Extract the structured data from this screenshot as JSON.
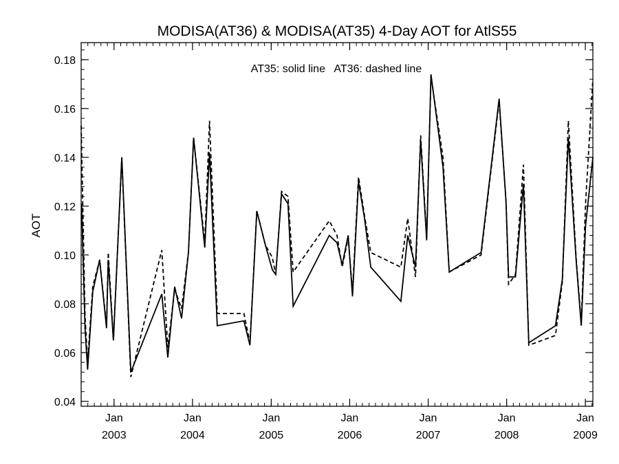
{
  "chart_data": {
    "type": "line",
    "title": "MODISA(AT36) & MODISA(AT35) 4-Day AOT for AtlS55",
    "ylabel": "AOT",
    "xlabel": "",
    "annotation": "AT35: solid line   AT36: dashed line",
    "xlim": [
      "2002-08-01",
      "2009-02-05"
    ],
    "ylim": [
      0.038,
      0.187
    ],
    "yticks": [
      0.04,
      0.06,
      0.08,
      0.1,
      0.12,
      0.14,
      0.16,
      0.18
    ],
    "ytick_labels": [
      "0.04",
      "0.06",
      "0.08",
      "0.10",
      "0.12",
      "0.14",
      "0.16",
      "0.18"
    ],
    "xticks": [
      {
        "date": "2003-01-01",
        "month": "Jan",
        "year": "2003"
      },
      {
        "date": "2004-01-01",
        "month": "Jan",
        "year": "2004"
      },
      {
        "date": "2005-01-01",
        "month": "Jan",
        "year": "2005"
      },
      {
        "date": "2006-01-01",
        "month": "Jan",
        "year": "2006"
      },
      {
        "date": "2007-01-01",
        "month": "Jan",
        "year": "2007"
      },
      {
        "date": "2008-01-01",
        "month": "Jan",
        "year": "2008"
      },
      {
        "date": "2009-01-01",
        "month": "Jan",
        "year": "2009"
      }
    ],
    "grid": false,
    "series": [
      {
        "name": "AT35",
        "style": "solid",
        "color": "#000000",
        "points": [
          [
            "2002-08-03",
            0.121
          ],
          [
            "2002-08-19",
            0.07
          ],
          [
            "2002-08-31",
            0.053
          ],
          [
            "2002-09-24",
            0.085
          ],
          [
            "2002-10-26",
            0.098
          ],
          [
            "2002-11-27",
            0.07
          ],
          [
            "2002-12-05",
            0.098
          ],
          [
            "2002-12-29",
            0.065
          ],
          [
            "2003-02-06",
            0.14
          ],
          [
            "2003-03-20",
            0.052
          ],
          [
            "2003-08-11",
            0.084
          ],
          [
            "2003-09-08",
            0.058
          ],
          [
            "2003-10-10",
            0.087
          ],
          [
            "2003-11-11",
            0.074
          ],
          [
            "2003-12-13",
            0.101
          ],
          [
            "2004-01-06",
            0.148
          ],
          [
            "2004-02-27",
            0.103
          ],
          [
            "2004-03-20",
            0.142
          ],
          [
            "2004-04-25",
            0.071
          ],
          [
            "2004-08-27",
            0.073
          ],
          [
            "2004-09-24",
            0.063
          ],
          [
            "2004-10-26",
            0.118
          ],
          [
            "2004-12-05",
            0.104
          ],
          [
            "2005-01-06",
            0.094
          ],
          [
            "2005-01-22",
            0.092
          ],
          [
            "2005-02-18",
            0.125
          ],
          [
            "2005-03-20",
            0.121
          ],
          [
            "2005-04-13",
            0.079
          ],
          [
            "2005-09-28",
            0.108
          ],
          [
            "2005-11-03",
            0.105
          ],
          [
            "2005-11-27",
            0.096
          ],
          [
            "2005-12-25",
            0.108
          ],
          [
            "2006-01-14",
            0.083
          ],
          [
            "2006-02-11",
            0.13
          ],
          [
            "2006-03-11",
            0.115
          ],
          [
            "2006-04-09",
            0.095
          ],
          [
            "2006-08-27",
            0.081
          ],
          [
            "2006-09-28",
            0.108
          ],
          [
            "2006-11-03",
            0.095
          ],
          [
            "2006-11-27",
            0.147
          ],
          [
            "2006-12-25",
            0.106
          ],
          [
            "2007-01-14",
            0.174
          ],
          [
            "2007-03-11",
            0.136
          ],
          [
            "2007-04-09",
            0.093
          ],
          [
            "2007-09-04",
            0.101
          ],
          [
            "2007-11-27",
            0.164
          ],
          [
            "2007-12-29",
            0.122
          ],
          [
            "2008-01-10",
            0.091
          ],
          [
            "2008-02-11",
            0.091
          ],
          [
            "2008-03-19",
            0.129
          ],
          [
            "2008-04-13",
            0.064
          ],
          [
            "2008-08-15",
            0.071
          ],
          [
            "2008-09-16",
            0.09
          ],
          [
            "2008-10-14",
            0.148
          ],
          [
            "2008-11-19",
            0.098
          ],
          [
            "2008-12-13",
            0.071
          ],
          [
            "2009-01-02",
            0.112
          ],
          [
            "2009-02-05",
            0.14
          ]
        ]
      },
      {
        "name": "AT36",
        "style": "dashed",
        "color": "#000000",
        "points": [
          [
            "2002-08-01",
            0.153
          ],
          [
            "2002-08-19",
            0.075
          ],
          [
            "2002-08-31",
            0.056
          ],
          [
            "2002-09-24",
            0.087
          ],
          [
            "2002-10-26",
            0.098
          ],
          [
            "2002-11-27",
            0.071
          ],
          [
            "2002-12-05",
            0.101
          ],
          [
            "2002-12-29",
            0.065
          ],
          [
            "2003-02-06",
            0.14
          ],
          [
            "2003-03-20",
            0.05
          ],
          [
            "2003-08-11",
            0.102
          ],
          [
            "2003-09-08",
            0.062
          ],
          [
            "2003-10-10",
            0.086
          ],
          [
            "2003-11-11",
            0.078
          ],
          [
            "2003-12-13",
            0.101
          ],
          [
            "2004-01-06",
            0.148
          ],
          [
            "2004-02-27",
            0.105
          ],
          [
            "2004-03-20",
            0.155
          ],
          [
            "2004-04-25",
            0.076
          ],
          [
            "2004-08-27",
            0.076
          ],
          [
            "2004-09-24",
            0.064
          ],
          [
            "2004-10-26",
            0.118
          ],
          [
            "2004-12-05",
            0.104
          ],
          [
            "2005-01-06",
            0.099
          ],
          [
            "2005-01-22",
            0.092
          ],
          [
            "2005-02-18",
            0.126
          ],
          [
            "2005-03-20",
            0.124
          ],
          [
            "2005-04-13",
            0.093
          ],
          [
            "2005-09-28",
            0.114
          ],
          [
            "2005-11-03",
            0.108
          ],
          [
            "2005-11-27",
            0.095
          ],
          [
            "2005-12-25",
            0.107
          ],
          [
            "2006-01-14",
            0.085
          ],
          [
            "2006-02-11",
            0.132
          ],
          [
            "2006-03-11",
            0.116
          ],
          [
            "2006-04-09",
            0.101
          ],
          [
            "2006-08-27",
            0.095
          ],
          [
            "2006-09-28",
            0.115
          ],
          [
            "2006-11-03",
            0.091
          ],
          [
            "2006-11-27",
            0.149
          ],
          [
            "2006-12-25",
            0.107
          ],
          [
            "2007-01-14",
            0.173
          ],
          [
            "2007-03-11",
            0.14
          ],
          [
            "2007-04-09",
            0.093
          ],
          [
            "2007-09-04",
            0.1
          ],
          [
            "2007-11-27",
            0.163
          ],
          [
            "2007-12-29",
            0.122
          ],
          [
            "2008-01-10",
            0.088
          ],
          [
            "2008-02-11",
            0.092
          ],
          [
            "2008-03-19",
            0.137
          ],
          [
            "2008-04-13",
            0.063
          ],
          [
            "2008-08-15",
            0.067
          ],
          [
            "2008-09-16",
            0.089
          ],
          [
            "2008-10-14",
            0.155
          ],
          [
            "2008-11-19",
            0.099
          ],
          [
            "2008-12-13",
            0.072
          ],
          [
            "2009-01-02",
            0.121
          ],
          [
            "2009-02-05",
            0.172
          ]
        ]
      }
    ]
  }
}
